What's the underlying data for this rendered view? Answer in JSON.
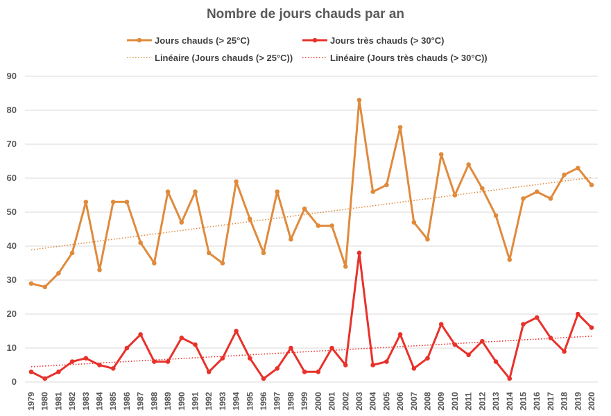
{
  "chart_data": {
    "type": "line",
    "title": "Nombre de jours chauds par an",
    "xlabel": "",
    "ylabel": "",
    "ylim": [
      0,
      90
    ],
    "y_ticks": [
      0,
      10,
      20,
      30,
      40,
      50,
      60,
      70,
      80,
      90
    ],
    "grid": true,
    "legend_position": "top",
    "categories": [
      "1979",
      "1980",
      "1981",
      "1982",
      "1983",
      "1984",
      "1985",
      "1986",
      "1987",
      "1988",
      "1989",
      "1990",
      "1991",
      "1992",
      "1993",
      "1994",
      "1995",
      "1996",
      "1997",
      "1998",
      "1999",
      "2000",
      "2001",
      "2002",
      "2003",
      "2004",
      "2005",
      "2006",
      "2007",
      "2008",
      "2009",
      "2010",
      "2011",
      "2012",
      "2013",
      "2014",
      "2015",
      "2016",
      "2017",
      "2018",
      "2019",
      "2020"
    ],
    "series": [
      {
        "name": "Jours chauds (> 25°C)",
        "color": "#E08A3C",
        "values": [
          29,
          28,
          32,
          38,
          53,
          33,
          53,
          53,
          41,
          35,
          56,
          47,
          56,
          38,
          35,
          59,
          48,
          38,
          56,
          42,
          51,
          46,
          46,
          34,
          83,
          56,
          58,
          75,
          47,
          42,
          67,
          55,
          64,
          57,
          49,
          36,
          54,
          56,
          54,
          61,
          63,
          58
        ]
      },
      {
        "name": "Jours très chauds (> 30°C)",
        "color": "#E8312A",
        "values": [
          3,
          1,
          3,
          6,
          7,
          5,
          4,
          10,
          14,
          6,
          6,
          13,
          11,
          3,
          7,
          15,
          7,
          1,
          4,
          10,
          3,
          3,
          10,
          5,
          38,
          5,
          6,
          14,
          4,
          7,
          17,
          11,
          8,
          12,
          6,
          1,
          17,
          19,
          13,
          9,
          20,
          16
        ]
      }
    ],
    "trendlines": [
      {
        "name": "Linéaire (Jours chauds (> 25°C))",
        "color": "#E08A3C",
        "start": 38.9,
        "end": 60.2
      },
      {
        "name": "Linéaire (Jours très chauds (> 30°C))",
        "color": "#E8312A",
        "start": 4.5,
        "end": 13.5
      }
    ]
  }
}
